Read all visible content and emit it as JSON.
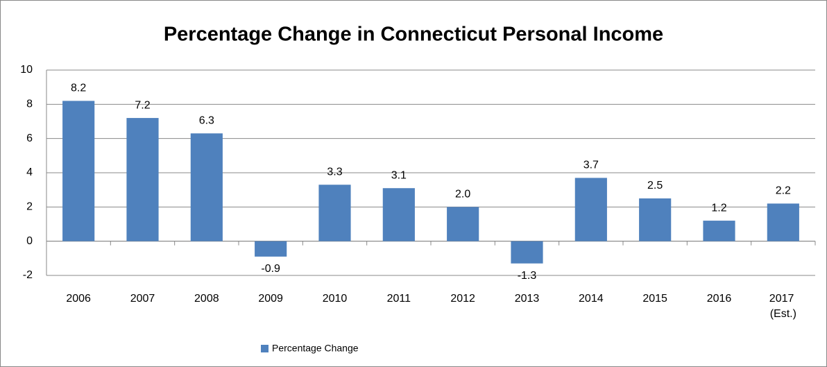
{
  "chart_data": {
    "type": "bar",
    "title": "Percentage Change in Connecticut Personal Income",
    "categories": [
      "2006",
      "2007",
      "2008",
      "2009",
      "2010",
      "2011",
      "2012",
      "2013",
      "2014",
      "2015",
      "2016",
      "2017 (Est.)"
    ],
    "series": [
      {
        "name": "Percentage Change",
        "color": "#4f81bd",
        "values": [
          8.2,
          7.2,
          6.3,
          -0.9,
          3.3,
          3.1,
          2.0,
          -1.3,
          3.7,
          2.5,
          1.2,
          2.2
        ],
        "value_labels": [
          "8.2",
          "7.2",
          "6.3",
          "-0.9",
          "3.3",
          "3.1",
          "2.0",
          "-1.3",
          "3.7",
          "2.5",
          "1.2",
          "2.2"
        ]
      }
    ],
    "ylim": [
      -2,
      10
    ],
    "yticks": [
      -2,
      0,
      2,
      4,
      6,
      8,
      10
    ],
    "grid": true,
    "legend": "bottom"
  }
}
